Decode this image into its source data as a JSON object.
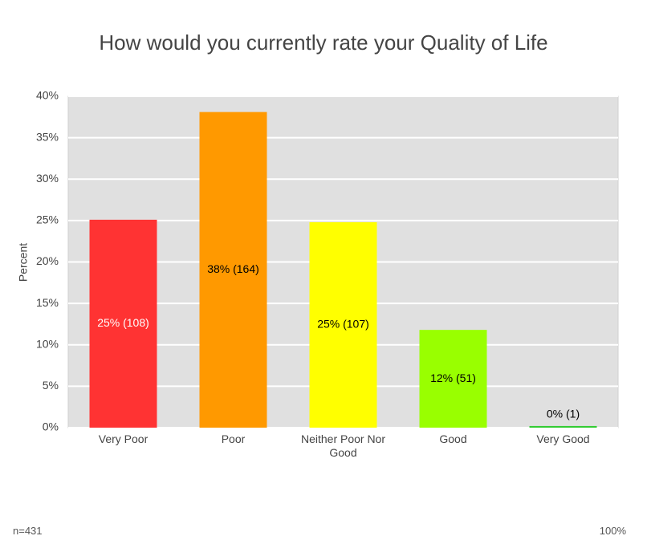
{
  "chart_data": {
    "type": "bar",
    "title": "How would you currently rate your Quality of Life",
    "y_label": "Percent",
    "categories": [
      "Very Poor",
      "Poor",
      "Neither Poor Nor Good",
      "Good",
      "Very Good"
    ],
    "values": [
      25.1,
      38.1,
      24.8,
      11.8,
      0.2
    ],
    "value_labels": [
      "25% (108)",
      "38% (164)",
      "25% (107)",
      "12% (51)",
      "0% (1)"
    ],
    "colors": [
      "#ff3333",
      "#ff9900",
      "#ffff00",
      "#99ff00",
      "#33cc33"
    ],
    "label_colors": [
      "#ffffff",
      "#000000",
      "#000000",
      "#000000",
      "#000000"
    ],
    "ylim": [
      0,
      40
    ],
    "yticks": [
      {
        "value": 0,
        "label": "0%"
      },
      {
        "value": 5,
        "label": "5%"
      },
      {
        "value": 10,
        "label": "10%"
      },
      {
        "value": 15,
        "label": "15%"
      },
      {
        "value": 20,
        "label": "20%"
      },
      {
        "value": 25,
        "label": "25%"
      },
      {
        "value": 30,
        "label": "30%"
      },
      {
        "value": 35,
        "label": "35%"
      },
      {
        "value": 40,
        "label": "40%"
      }
    ],
    "grid": true,
    "footnote_left": "n=431",
    "footnote_right": "100%"
  }
}
